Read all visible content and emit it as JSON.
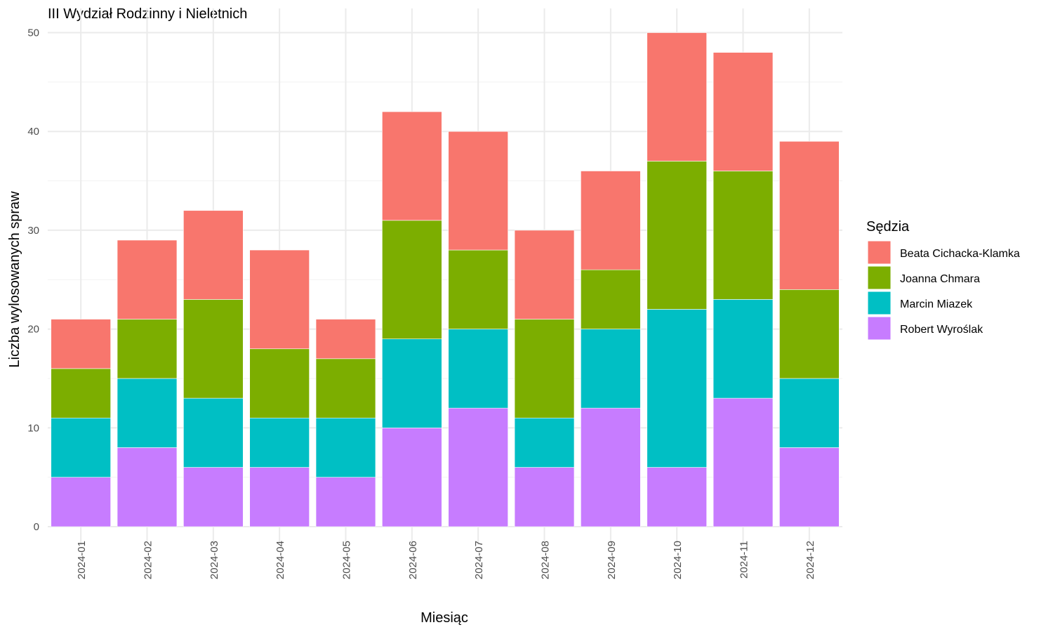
{
  "chart_data": {
    "type": "bar",
    "stacked": true,
    "title": "III Wydział Rodzinny i Nieletnich",
    "xlabel": "Miesiąc",
    "ylabel": "Liczba wylosowanych spraw",
    "ylim": [
      0,
      50
    ],
    "yticks": [
      0,
      10,
      20,
      30,
      40,
      50
    ],
    "grid": true,
    "legend_title": "Sędzia",
    "legend_position": "right",
    "categories": [
      "2024-01",
      "2024-02",
      "2024-03",
      "2024-04",
      "2024-05",
      "2024-06",
      "2024-07",
      "2024-08",
      "2024-09",
      "2024-10",
      "2024-11",
      "2024-12"
    ],
    "series": [
      {
        "name": "Beata Cichacka-Klamka",
        "color": "#f8766d",
        "values": [
          5,
          8,
          9,
          10,
          4,
          11,
          12,
          9,
          10,
          13,
          12,
          15
        ]
      },
      {
        "name": "Joanna Chmara",
        "color": "#7cae00",
        "values": [
          5,
          6,
          10,
          7,
          6,
          12,
          8,
          10,
          6,
          15,
          13,
          9
        ]
      },
      {
        "name": "Marcin Miazek",
        "color": "#00bfc4",
        "values": [
          6,
          7,
          7,
          5,
          6,
          9,
          8,
          5,
          8,
          16,
          10,
          7
        ]
      },
      {
        "name": "Robert Wyroślak",
        "color": "#c77cff",
        "values": [
          5,
          8,
          6,
          6,
          5,
          10,
          12,
          6,
          12,
          6,
          13,
          8
        ]
      }
    ],
    "stack_order_bottom_to_top": [
      "Robert Wyroślak",
      "Marcin Miazek",
      "Joanna Chmara",
      "Beata Cichacka-Klamka"
    ]
  }
}
